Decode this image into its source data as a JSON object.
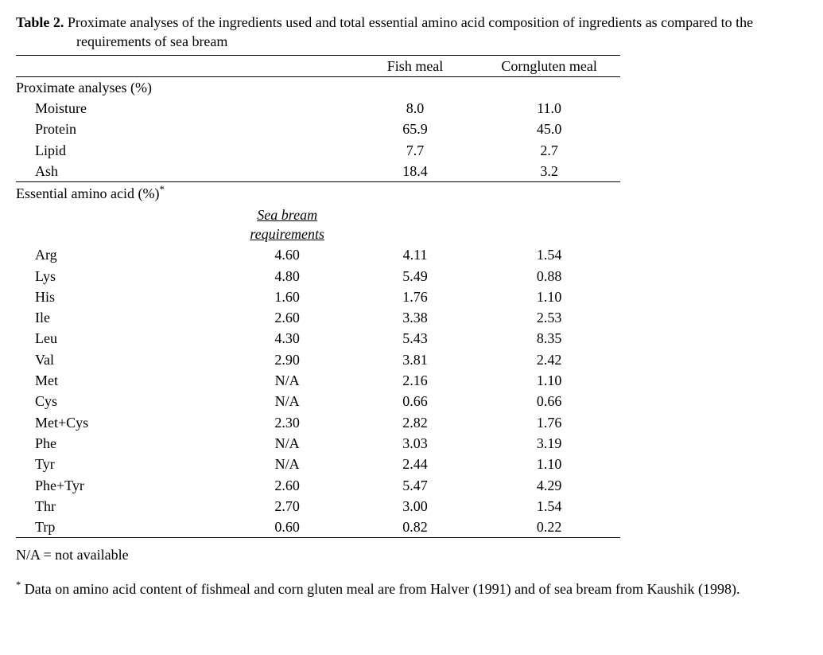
{
  "caption": {
    "label": "Table 2.",
    "text": "Proximate analyses of the ingredients used and total essential amino acid composition of ingredients as compared to the requirements of sea bream"
  },
  "headers": {
    "fish_meal": "Fish meal",
    "corngluten": "Corngluten meal"
  },
  "sections": {
    "proximate": "Proximate analyses (%)",
    "eaa": "Essential amino acid (%)",
    "sbr": "Sea bream requirements"
  },
  "proximate_rows": {
    "moisture": {
      "label": "Moisture",
      "fm": "8.0",
      "cg": "11.0"
    },
    "protein": {
      "label": "Protein",
      "fm": "65.9",
      "cg": "45.0"
    },
    "lipid": {
      "label": "Lipid",
      "fm": "7.7",
      "cg": "2.7"
    },
    "ash": {
      "label": "Ash",
      "fm": "18.4",
      "cg": "3.2"
    }
  },
  "eaa_rows": {
    "arg": {
      "label": "Arg",
      "req": "4.60",
      "fm": "4.11",
      "cg": "1.54"
    },
    "lys": {
      "label": "Lys",
      "req": "4.80",
      "fm": "5.49",
      "cg": "0.88"
    },
    "his": {
      "label": "His",
      "req": "1.60",
      "fm": "1.76",
      "cg": "1.10"
    },
    "ile": {
      "label": "Ile",
      "req": "2.60",
      "fm": "3.38",
      "cg": "2.53"
    },
    "leu": {
      "label": "Leu",
      "req": "4.30",
      "fm": "5.43",
      "cg": "8.35"
    },
    "val": {
      "label": "Val",
      "req": "2.90",
      "fm": "3.81",
      "cg": "2.42"
    },
    "met": {
      "label": "Met",
      "req": "N/A",
      "fm": "2.16",
      "cg": "1.10"
    },
    "cys": {
      "label": "Cys",
      "req": "N/A",
      "fm": "0.66",
      "cg": "0.66"
    },
    "metcys": {
      "label": "Met+Cys",
      "req": "2.30",
      "fm": "2.82",
      "cg": "1.76"
    },
    "phe": {
      "label": "Phe",
      "req": "N/A",
      "fm": "3.03",
      "cg": "3.19"
    },
    "tyr": {
      "label": "Tyr",
      "req": "N/A",
      "fm": "2.44",
      "cg": "1.10"
    },
    "phetyr": {
      "label": "Phe+Tyr",
      "req": "2.60",
      "fm": "5.47",
      "cg": "4.29"
    },
    "thr": {
      "label": "Thr",
      "req": "2.70",
      "fm": "3.00",
      "cg": "1.54"
    },
    "trp": {
      "label": "Trp",
      "req": "0.60",
      "fm": "0.82",
      "cg": "0.22"
    }
  },
  "notes": {
    "na": "N/A = not available",
    "footnote": "Data on amino acid content of fishmeal and corn gluten meal are from Halver (1991) and of sea bream from Kaushik (1998)."
  },
  "style": {
    "font_family": "Times New Roman",
    "font_size_pt": 14,
    "text_color": "#000000",
    "background_color": "#ffffff",
    "rule_color": "#000000"
  }
}
